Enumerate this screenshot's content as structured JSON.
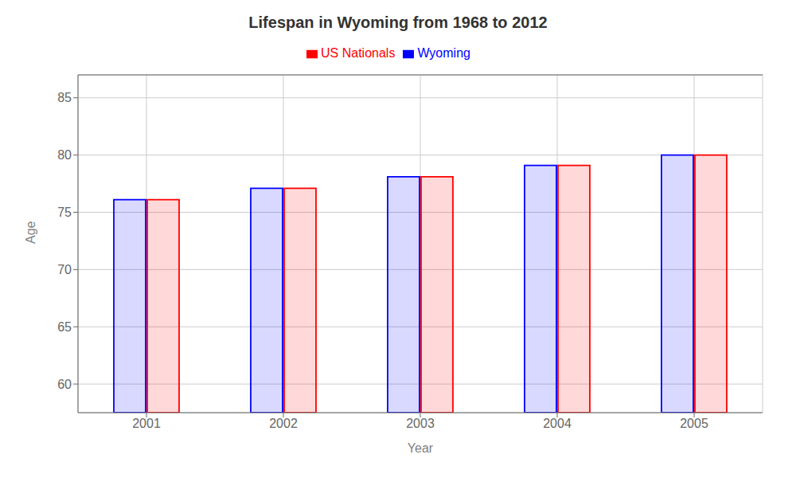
{
  "chart_data": {
    "type": "bar",
    "title": "Lifespan in Wyoming from 1968 to 2012",
    "xlabel": "Year",
    "ylabel": "Age",
    "categories": [
      "2001",
      "2002",
      "2003",
      "2004",
      "2005"
    ],
    "series": [
      {
        "name": "Wyoming",
        "color": "#0000ff",
        "values": [
          76.1,
          77.1,
          78.1,
          79.1,
          80.0
        ]
      },
      {
        "name": "US Nationals",
        "color": "#ff0000",
        "values": [
          76.1,
          77.1,
          78.1,
          79.1,
          80.0
        ]
      }
    ],
    "ylim": [
      57.5,
      87
    ],
    "yticks": [
      60,
      65,
      70,
      75,
      80,
      85
    ],
    "grid": true,
    "legend": "top"
  }
}
